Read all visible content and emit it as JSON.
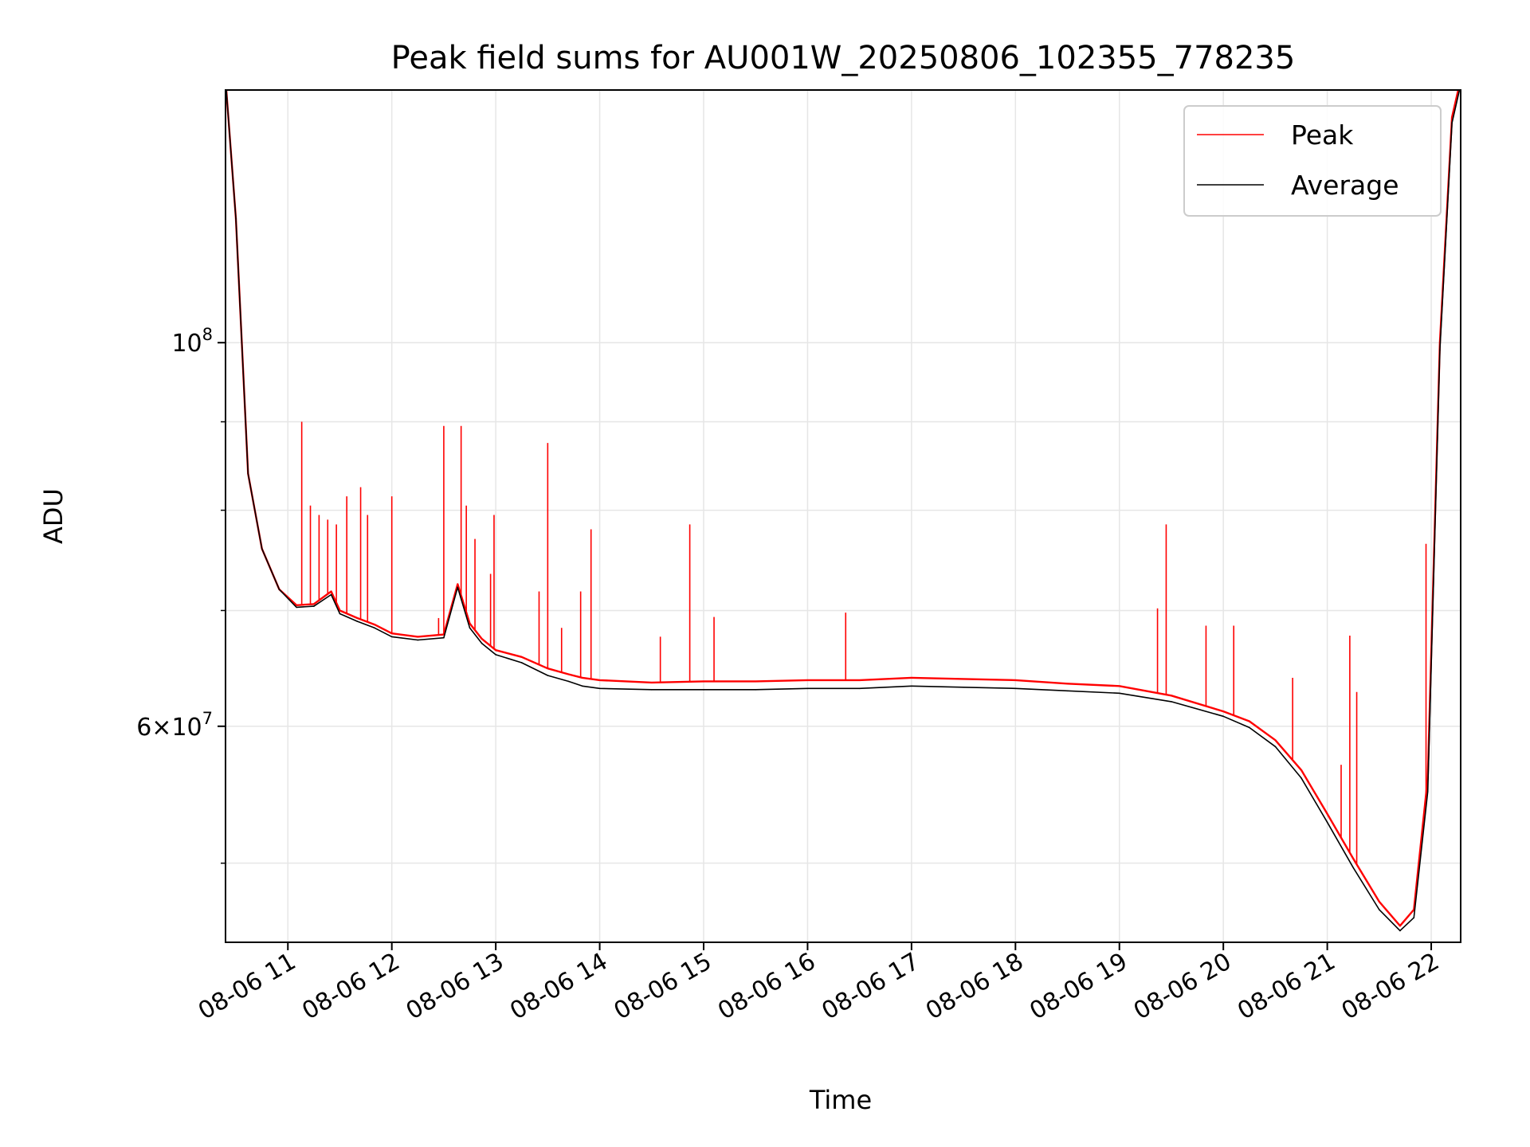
{
  "chart_data": {
    "type": "line",
    "title": "Peak field sums for AU001W_20250806_102355_778235",
    "xlabel": "Time",
    "ylabel": "ADU",
    "yscale": "log",
    "grid": true,
    "legend": "top-right",
    "xlim": [
      "08-06 10:24",
      "08-06 22:17"
    ],
    "ylim": [
      45000000,
      140000000
    ],
    "x_ticks": [
      "08-06 11",
      "08-06 12",
      "08-06 13",
      "08-06 14",
      "08-06 15",
      "08-06 16",
      "08-06 17",
      "08-06 18",
      "08-06 19",
      "08-06 20",
      "08-06 21",
      "08-06 22"
    ],
    "y_ticks_labeled": [
      {
        "value": 100000000,
        "base": "10",
        "exp": "8",
        "mant": ""
      },
      {
        "value": 60000000,
        "base": "10",
        "exp": "7",
        "mant": "6"
      }
    ],
    "y_ticks_minor": [
      50000000,
      70000000,
      80000000,
      90000000
    ],
    "colors": {
      "peak": "#ff0000",
      "average": "#000000"
    },
    "series": [
      {
        "name": "Peak",
        "color": "#ff0000",
        "x": [
          "08-06 10:24",
          "08-06 10:30",
          "08-06 10:37",
          "08-06 10:45",
          "08-06 10:55",
          "08-06 11:05",
          "08-06 11:15",
          "08-06 11:25",
          "08-06 11:30",
          "08-06 11:40",
          "08-06 11:50",
          "08-06 12:00",
          "08-06 12:15",
          "08-06 12:30",
          "08-06 12:38",
          "08-06 12:45",
          "08-06 12:52",
          "08-06 13:00",
          "08-06 13:15",
          "08-06 13:30",
          "08-06 13:42",
          "08-06 13:50",
          "08-06 14:00",
          "08-06 14:30",
          "08-06 15:00",
          "08-06 15:30",
          "08-06 16:00",
          "08-06 16:30",
          "08-06 17:00",
          "08-06 17:30",
          "08-06 18:00",
          "08-06 18:30",
          "08-06 19:00",
          "08-06 19:30",
          "08-06 20:00",
          "08-06 20:15",
          "08-06 20:30",
          "08-06 20:45",
          "08-06 21:00",
          "08-06 21:15",
          "08-06 21:30",
          "08-06 21:42",
          "08-06 21:50",
          "08-06 21:58",
          "08-06 22:05",
          "08-06 22:12",
          "08-06 22:17"
        ],
        "y": [
          142000000,
          118000000,
          84000000,
          76000000,
          72000000,
          70500000,
          70600000,
          71800000,
          70000000,
          69300000,
          68700000,
          67900000,
          67600000,
          67800000,
          72500000,
          68800000,
          67400000,
          66400000,
          65800000,
          64800000,
          64300000,
          64000000,
          63800000,
          63600000,
          63700000,
          63700000,
          63800000,
          63800000,
          64000000,
          63900000,
          63800000,
          63500000,
          63300000,
          62500000,
          61200000,
          60400000,
          58900000,
          56600000,
          53400000,
          50300000,
          47500000,
          46000000,
          47000000,
          56000000,
          100000000,
          135000000,
          142000000
        ],
        "spikes": [
          {
            "x": "08-06 11:08",
            "y": 90000000
          },
          {
            "x": "08-06 11:13",
            "y": 80500000
          },
          {
            "x": "08-06 11:18",
            "y": 79500000
          },
          {
            "x": "08-06 11:23",
            "y": 79000000
          },
          {
            "x": "08-06 11:28",
            "y": 78500000
          },
          {
            "x": "08-06 11:34",
            "y": 81500000
          },
          {
            "x": "08-06 11:42",
            "y": 82500000
          },
          {
            "x": "08-06 11:46",
            "y": 79500000
          },
          {
            "x": "08-06 12:00",
            "y": 81500000
          },
          {
            "x": "08-06 12:27",
            "y": 69300000
          },
          {
            "x": "08-06 12:30",
            "y": 89500000
          },
          {
            "x": "08-06 12:40",
            "y": 89500000
          },
          {
            "x": "08-06 12:43",
            "y": 80500000
          },
          {
            "x": "08-06 12:48",
            "y": 77000000
          },
          {
            "x": "08-06 12:59",
            "y": 79500000
          },
          {
            "x": "08-06 12:57",
            "y": 73500000
          },
          {
            "x": "08-06 13:25",
            "y": 71800000
          },
          {
            "x": "08-06 13:30",
            "y": 87500000
          },
          {
            "x": "08-06 13:38",
            "y": 68400000
          },
          {
            "x": "08-06 13:49",
            "y": 71800000
          },
          {
            "x": "08-06 13:55",
            "y": 78000000
          },
          {
            "x": "08-06 14:35",
            "y": 67600000
          },
          {
            "x": "08-06 14:52",
            "y": 78500000
          },
          {
            "x": "08-06 15:06",
            "y": 69400000
          },
          {
            "x": "08-06 16:22",
            "y": 69800000
          },
          {
            "x": "08-06 19:22",
            "y": 70200000
          },
          {
            "x": "08-06 19:27",
            "y": 78500000
          },
          {
            "x": "08-06 19:50",
            "y": 68600000
          },
          {
            "x": "08-06 20:06",
            "y": 68600000
          },
          {
            "x": "08-06 20:40",
            "y": 64000000
          },
          {
            "x": "08-06 21:08",
            "y": 57000000
          },
          {
            "x": "08-06 21:13",
            "y": 67700000
          },
          {
            "x": "08-06 21:17",
            "y": 62800000
          },
          {
            "x": "08-06 21:57",
            "y": 76500000
          }
        ]
      },
      {
        "name": "Average",
        "color": "#000000",
        "x": [
          "08-06 10:24",
          "08-06 10:30",
          "08-06 10:37",
          "08-06 10:45",
          "08-06 10:55",
          "08-06 11:05",
          "08-06 11:15",
          "08-06 11:25",
          "08-06 11:30",
          "08-06 11:40",
          "08-06 11:50",
          "08-06 12:00",
          "08-06 12:15",
          "08-06 12:30",
          "08-06 12:38",
          "08-06 12:45",
          "08-06 12:52",
          "08-06 13:00",
          "08-06 13:15",
          "08-06 13:30",
          "08-06 13:42",
          "08-06 13:50",
          "08-06 14:00",
          "08-06 14:30",
          "08-06 15:00",
          "08-06 15:30",
          "08-06 16:00",
          "08-06 16:30",
          "08-06 17:00",
          "08-06 17:30",
          "08-06 18:00",
          "08-06 18:30",
          "08-06 19:00",
          "08-06 19:30",
          "08-06 20:00",
          "08-06 20:15",
          "08-06 20:30",
          "08-06 20:45",
          "08-06 21:00",
          "08-06 21:15",
          "08-06 21:30",
          "08-06 21:42",
          "08-06 21:50",
          "08-06 21:58",
          "08-06 22:05",
          "08-06 22:12",
          "08-06 22:17"
        ],
        "y": [
          142000000,
          118000000,
          84000000,
          76000000,
          72000000,
          70300000,
          70400000,
          71500000,
          69700000,
          69000000,
          68400000,
          67600000,
          67300000,
          67500000,
          72200000,
          68400000,
          67000000,
          66000000,
          65300000,
          64200000,
          63700000,
          63300000,
          63100000,
          63000000,
          63000000,
          63000000,
          63100000,
          63100000,
          63300000,
          63200000,
          63100000,
          62900000,
          62700000,
          62000000,
          60800000,
          59900000,
          58400000,
          56000000,
          52800000,
          49700000,
          47000000,
          45700000,
          46500000,
          55000000,
          99000000,
          134000000,
          141000000
        ]
      }
    ]
  }
}
